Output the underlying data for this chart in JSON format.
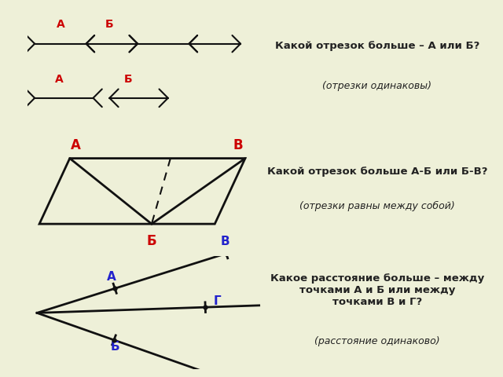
{
  "bg_color": "#eef0d8",
  "panel1_bg": "#ffffff",
  "panel2_bg": "#cce0ec",
  "panel3_bg": "#cce0ec",
  "title1": "Какой отрезок больше – А или Б?",
  "sub1": "(отрезки одинаковы)",
  "title2": "Какой отрезок больше А-Б или Б-В?",
  "sub2": "(отрезки равны между собой)",
  "title3": "Какое расстояние больше – между\nточками А и Б или между\nточками В и Г?",
  "sub3": "(расстояние одинаково)",
  "label_color_red": "#cc0000",
  "label_color_blue": "#2222cc",
  "text_color": "#222222",
  "line_color": "#111111"
}
